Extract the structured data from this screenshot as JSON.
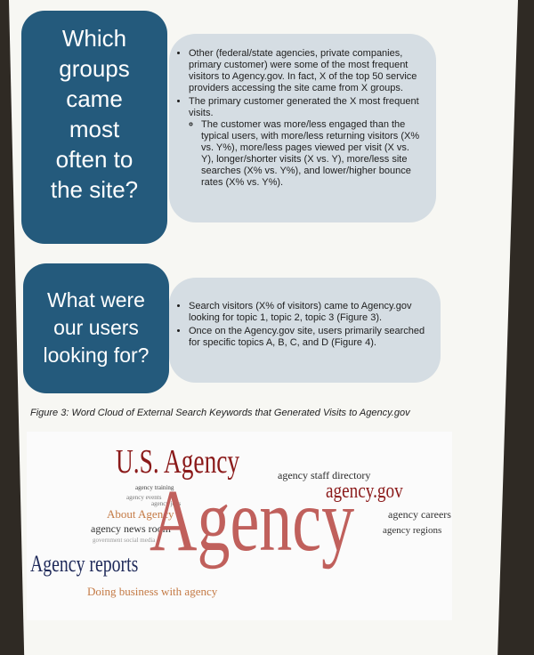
{
  "sections": [
    {
      "question_lines": [
        "Which",
        "groups",
        "came",
        "most",
        "often to",
        "the site?"
      ],
      "bullets": [
        {
          "text": "Other (federal/state agencies, private companies, primary customer) were some of the most frequent visitors to Agency.gov.  In fact, X of the top 50 service providers accessing the site came from X groups.",
          "sub": []
        },
        {
          "text": "The primary customer generated the X most frequent visits.",
          "sub": [
            "The customer was more/less engaged than the typical users, with more/less returning visitors (X% vs. Y%), more/less pages viewed per visit (X vs. Y), longer/shorter visits (X vs. Y), more/less site searches (X% vs. Y%), and lower/higher bounce rates (X% vs. Y%)."
          ]
        }
      ]
    },
    {
      "question_lines": [
        "What were",
        "our users",
        "looking for?"
      ],
      "bullets": [
        {
          "text": "Search visitors (X% of visitors) came to Agency.gov looking for topic 1, topic 2, topic 3 (Figure 3).",
          "sub": []
        },
        {
          "text": "Once on the Agency.gov site, users primarily searched for specific topics A, B, C, and D (Figure 4).",
          "sub": []
        }
      ]
    }
  ],
  "figure_caption": "Figure 3: Word Cloud of External Search Keywords that Generated Visits to Agency.gov",
  "word_cloud": {
    "words": [
      {
        "text": "U.S. Agency",
        "color": "#8b1a1a"
      },
      {
        "text": "agency staff directory",
        "color": "#2a2a2a"
      },
      {
        "text": "agency.gov",
        "color": "#8b1a1a"
      },
      {
        "text": "agency training",
        "color": "#444444"
      },
      {
        "text": "agency events",
        "color": "#777777"
      },
      {
        "text": "agency jobs",
        "color": "#777777"
      },
      {
        "text": "About Agency",
        "color": "#c47a45"
      },
      {
        "text": "agency news room",
        "color": "#333333"
      },
      {
        "text": "government social media",
        "color": "#999999"
      },
      {
        "text": "Agency",
        "color": "#c0605c"
      },
      {
        "text": "agency careers",
        "color": "#333333"
      },
      {
        "text": "agency regions",
        "color": "#333333"
      },
      {
        "text": "Agency reports",
        "color": "#1f2a5a"
      },
      {
        "text": "Doing business with agency",
        "color": "#c47a45"
      }
    ]
  }
}
